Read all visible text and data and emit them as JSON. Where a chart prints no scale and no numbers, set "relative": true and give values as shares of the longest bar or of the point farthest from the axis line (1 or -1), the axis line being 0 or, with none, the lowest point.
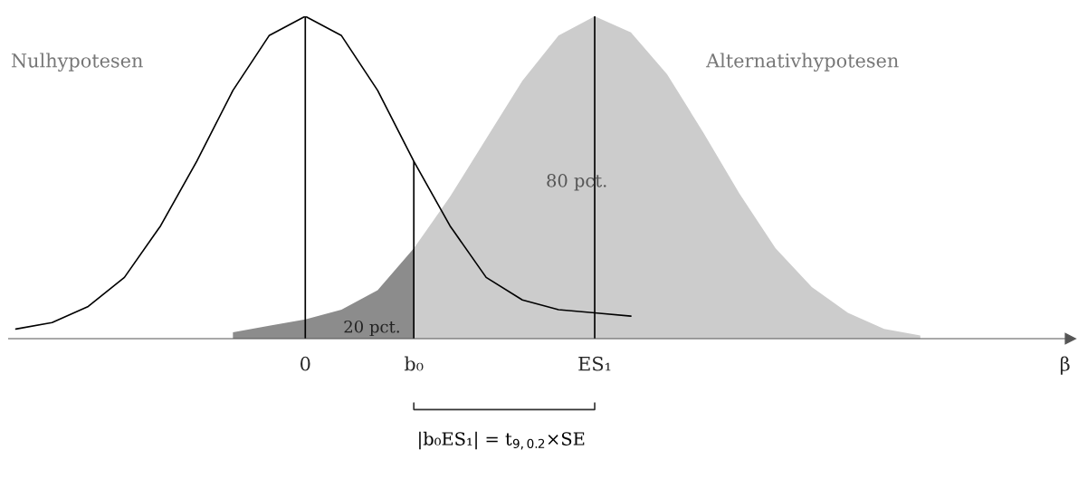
{
  "chart_data": {
    "type": "line",
    "relative": true,
    "categories": [
      null,
      null,
      null,
      null,
      null,
      null,
      null,
      null,
      "0",
      null,
      null,
      "b₀",
      null,
      null,
      null,
      null,
      "ES₁",
      null,
      null,
      null,
      null,
      null,
      null,
      null,
      null,
      null,
      null,
      null,
      null,
      "β"
    ],
    "legend": false,
    "grid": false,
    "marker": "none",
    "line_style": "solid",
    "series": [
      {
        "type": "area",
        "color": "#8c8c8c",
        "values": [
          null,
          null,
          null,
          null,
          null,
          null,
          0.02,
          0.04,
          0.06,
          0.09,
          0.15,
          0.28,
          null,
          null,
          null,
          null,
          null,
          null,
          null,
          null,
          null,
          null,
          null,
          null,
          null,
          null,
          null,
          null,
          null,
          null
        ]
      },
      {
        "type": "area",
        "color": "#cccccc",
        "values": [
          null,
          null,
          null,
          null,
          null,
          null,
          null,
          null,
          null,
          null,
          null,
          0.28,
          0.44,
          0.62,
          0.8,
          0.94,
          1,
          0.95,
          0.82,
          0.64,
          0.45,
          0.28,
          0.16,
          0.08,
          0.03,
          0.01,
          null,
          null,
          null,
          null
        ]
      },
      {
        "color": "#000000",
        "values": [
          0.03,
          0.05,
          0.1,
          0.19,
          0.35,
          0.55,
          0.77,
          0.94,
          1,
          0.94,
          0.77,
          0.55,
          0.35,
          0.19,
          0.12,
          0.09,
          0.08,
          0.07,
          null,
          null,
          null,
          null,
          null,
          null,
          null,
          null,
          null,
          null,
          null,
          null
        ]
      }
    ],
    "ref_lines": [
      {
        "axis": "x",
        "value": "0",
        "color": "#000000"
      },
      {
        "axis": "x",
        "value": "b₀",
        "color": "#000000"
      },
      {
        "axis": "x",
        "value": "ES₁",
        "color": "#000000"
      }
    ],
    "annotations": [
      "Nulhypotesen",
      "Alternativhypotesen",
      "80 pct.",
      "20 pct.",
      "|b₀ES₁| = t$_{9,0.2}$×SE"
    ]
  }
}
